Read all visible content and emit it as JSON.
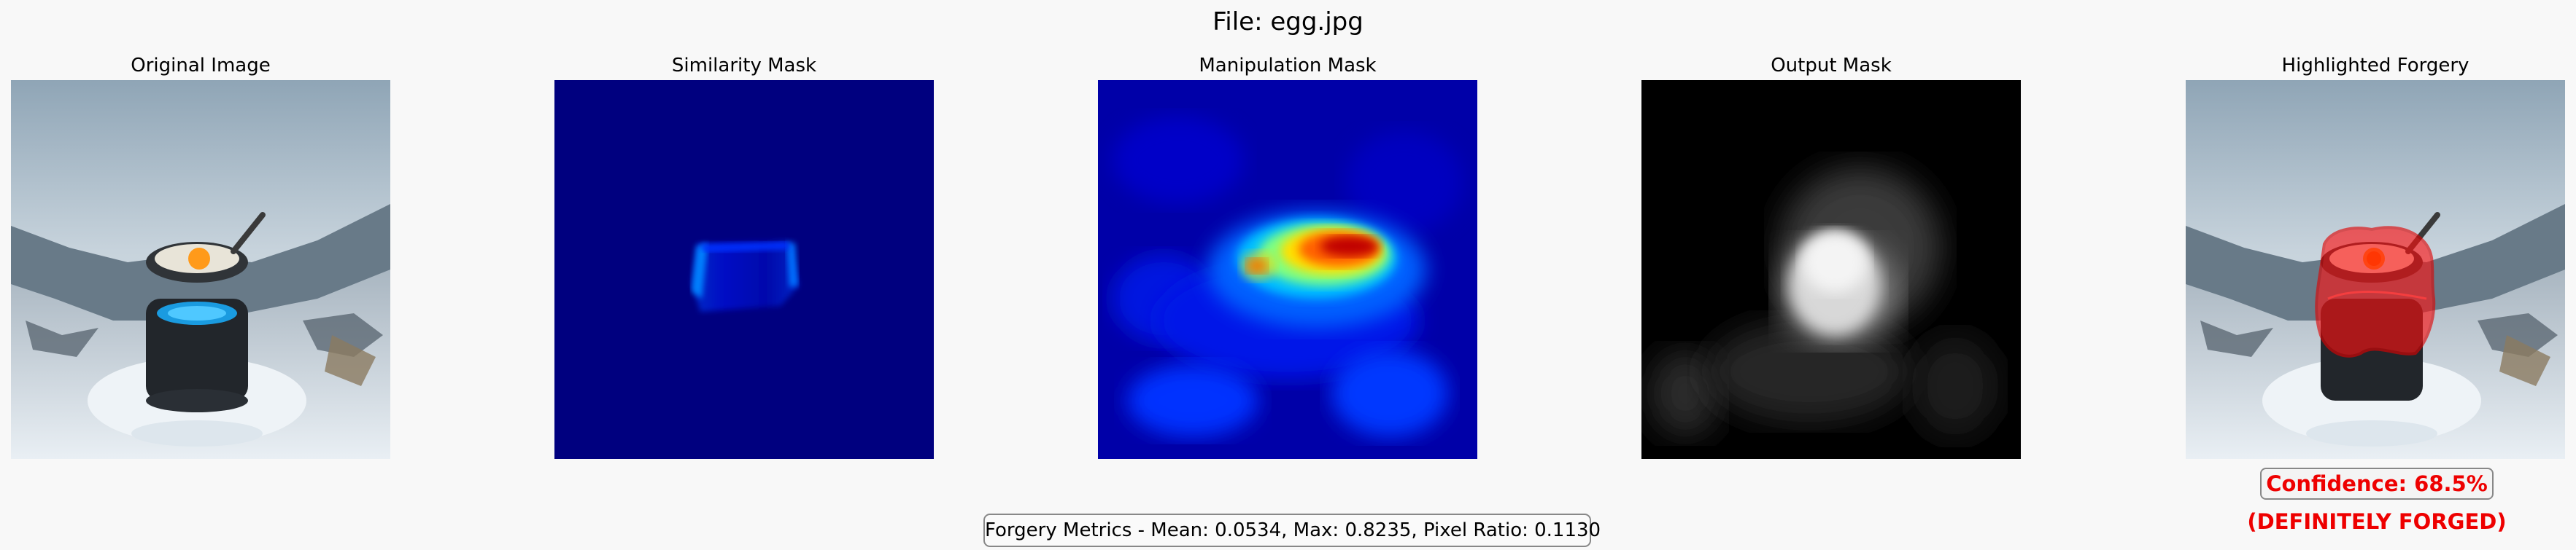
{
  "figure": {
    "title": "File: egg.jpg"
  },
  "panels": [
    {
      "title": "Original Image",
      "image": "snowy-camp-stove-egg-photo"
    },
    {
      "title": "Similarity Mask",
      "image": "jet-colormap-similarity-heatmap"
    },
    {
      "title": "Manipulation Mask",
      "image": "jet-colormap-manipulation-heatmap"
    },
    {
      "title": "Output Mask",
      "image": "grayscale-output-mask"
    },
    {
      "title": "Highlighted Forgery",
      "image": "photo-with-red-forgery-overlay"
    }
  ],
  "result": {
    "confidence_label": "Confidence: 68.5%",
    "verdict": "(DEFINITELY FORGED)",
    "metrics": "Forgery Metrics - Mean: 0.0534, Max: 0.8235, Pixel Ratio: 0.1130"
  },
  "colors": {
    "background": "#f8f8f8",
    "alert_red": "#ee0000",
    "jet_base": "#00007f"
  }
}
